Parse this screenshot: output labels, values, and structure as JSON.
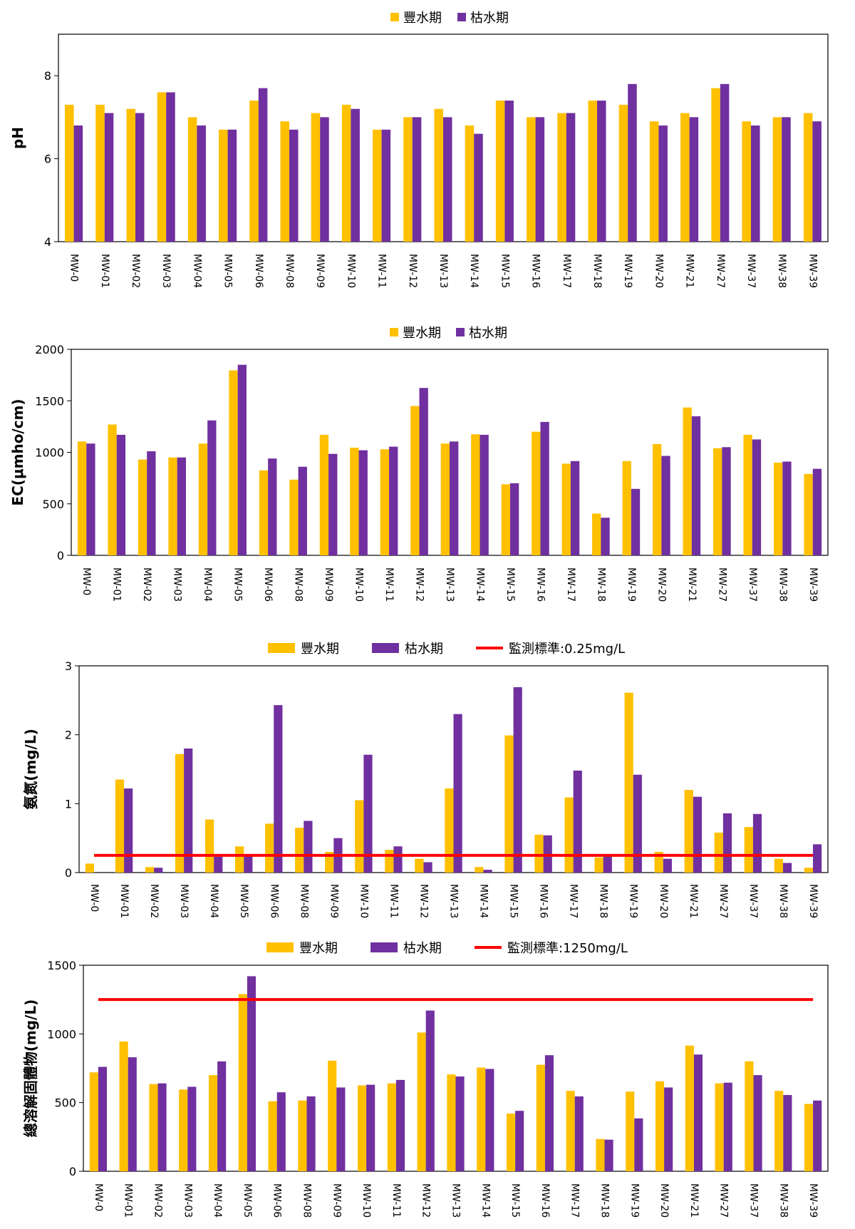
{
  "colors": {
    "wet": "#FFC000",
    "dry": "#7030A0",
    "standard": "#FF0000",
    "axis": "#000000"
  },
  "chart_data": [
    {
      "type": "bar",
      "categories": [
        "MW-0",
        "MW-01",
        "MW-02",
        "MW-03",
        "MW-04",
        "MW-05",
        "MW-06",
        "MW-08",
        "MW-09",
        "MW-10",
        "MW-11",
        "MW-12",
        "MW-13",
        "MW-14",
        "MW-15",
        "MW-16",
        "MW-17",
        "MW-18",
        "MW-19",
        "MW-20",
        "MW-21",
        "MW-27",
        "MW-37",
        "MW-38",
        "MW-39"
      ],
      "series": [
        {
          "name": "豐水期",
          "values": [
            7.3,
            7.3,
            7.2,
            7.6,
            7.0,
            6.7,
            7.4,
            6.9,
            7.1,
            7.3,
            6.7,
            7.0,
            7.2,
            6.8,
            7.4,
            7.0,
            7.1,
            7.4,
            7.3,
            6.9,
            7.1,
            7.7,
            6.9,
            7.0,
            7.1
          ]
        },
        {
          "name": "枯水期",
          "values": [
            6.8,
            7.1,
            7.1,
            7.6,
            6.8,
            6.7,
            7.7,
            6.7,
            7.0,
            7.2,
            6.7,
            7.0,
            7.0,
            6.6,
            7.4,
            7.0,
            7.1,
            7.4,
            7.8,
            6.8,
            7.0,
            7.8,
            6.8,
            7.0,
            6.9
          ]
        }
      ],
      "ylabel": "pH",
      "ylim": [
        4,
        9
      ],
      "yticks": [
        "4",
        "6",
        "8"
      ],
      "grid": false,
      "legend": "top-center"
    },
    {
      "type": "bar",
      "categories": [
        "MW-0",
        "MW-01",
        "MW-02",
        "MW-03",
        "MW-04",
        "MW-05",
        "MW-06",
        "MW-08",
        "MW-09",
        "MW-10",
        "MW-11",
        "MW-12",
        "MW-13",
        "MW-14",
        "MW-15",
        "MW-16",
        "MW-17",
        "MW-18",
        "MW-19",
        "MW-20",
        "MW-21",
        "MW-27",
        "MW-37",
        "MW-38",
        "MW-39"
      ],
      "series": [
        {
          "name": "豐水期",
          "values": [
            1105,
            1270,
            930,
            950,
            1085,
            1795,
            825,
            735,
            1170,
            1045,
            1030,
            1450,
            1085,
            1175,
            690,
            1200,
            890,
            405,
            915,
            1080,
            1435,
            1040,
            1170,
            900,
            790
          ]
        },
        {
          "name": "枯水期",
          "values": [
            1085,
            1170,
            1010,
            950,
            1310,
            1850,
            940,
            860,
            985,
            1020,
            1055,
            1625,
            1105,
            1170,
            700,
            1295,
            915,
            365,
            645,
            965,
            1350,
            1050,
            1125,
            910,
            840
          ]
        }
      ],
      "ylabel": "EC(μmho/cm)",
      "ylim": [
        0,
        2000
      ],
      "yticks": [
        "0",
        "500",
        "1000",
        "1500",
        "2000"
      ],
      "grid": false,
      "legend": "top-center"
    },
    {
      "type": "bar",
      "categories": [
        "MW-0",
        "MW-01",
        "MW-02",
        "MW-03",
        "MW-04",
        "MW-05",
        "MW-06",
        "MW-08",
        "MW-09",
        "MW-10",
        "MW-11",
        "MW-12",
        "MW-13",
        "MW-14",
        "MW-15",
        "MW-16",
        "MW-17",
        "MW-18",
        "MW-19",
        "MW-20",
        "MW-21",
        "MW-27",
        "MW-37",
        "MW-38",
        "MW-39"
      ],
      "series": [
        {
          "name": "豐水期",
          "values": [
            0.13,
            1.35,
            0.08,
            1.72,
            0.77,
            0.38,
            0.71,
            0.65,
            0.3,
            1.05,
            0.33,
            0.2,
            1.22,
            0.08,
            1.99,
            0.55,
            1.09,
            0.22,
            2.61,
            0.3,
            1.2,
            0.58,
            0.66,
            0.2,
            0.07
          ]
        },
        {
          "name": "枯水期",
          "values": [
            0,
            1.22,
            0.07,
            1.8,
            0.23,
            0.25,
            2.43,
            0.75,
            0.5,
            1.71,
            0.38,
            0.15,
            2.3,
            0.04,
            2.69,
            0.54,
            1.48,
            0.25,
            1.42,
            0.2,
            1.1,
            0.86,
            0.85,
            0.14,
            0.41
          ]
        }
      ],
      "standard": {
        "name": "監測標準:0.25mg/L",
        "value": 0.25
      },
      "ylabel": "氨氮(mg/L)",
      "ylim": [
        0,
        3
      ],
      "yticks": [
        "0",
        "1",
        "2",
        "3"
      ],
      "grid": false,
      "legend": "top-center"
    },
    {
      "type": "bar",
      "categories": [
        "MW-0",
        "MW-01",
        "MW-02",
        "MW-03",
        "MW-04",
        "MW-05",
        "MW-06",
        "MW-08",
        "MW-09",
        "MW-10",
        "MW-11",
        "MW-12",
        "MW-13",
        "MW-14",
        "MW-15",
        "MW-16",
        "MW-17",
        "MW-18",
        "MW-19",
        "MW-20",
        "MW-21",
        "MW-27",
        "MW-37",
        "MW-38",
        "MW-39"
      ],
      "series": [
        {
          "name": "豐水期",
          "values": [
            720,
            945,
            635,
            595,
            700,
            1290,
            510,
            515,
            805,
            625,
            640,
            1010,
            705,
            755,
            420,
            775,
            585,
            235,
            580,
            655,
            915,
            640,
            800,
            585,
            490
          ]
        },
        {
          "name": "枯水期",
          "values": [
            760,
            830,
            640,
            615,
            800,
            1420,
            575,
            545,
            610,
            630,
            665,
            1170,
            690,
            745,
            440,
            845,
            545,
            230,
            385,
            610,
            850,
            645,
            700,
            555,
            515
          ]
        }
      ],
      "standard": {
        "name": "監測標準:1250mg/L",
        "value": 1250
      },
      "ylabel": "總溶解固體物(mg/L)",
      "ylim": [
        0,
        1500
      ],
      "yticks": [
        "0",
        "500",
        "1000",
        "1500"
      ],
      "grid": false,
      "legend": "top-center"
    }
  ]
}
